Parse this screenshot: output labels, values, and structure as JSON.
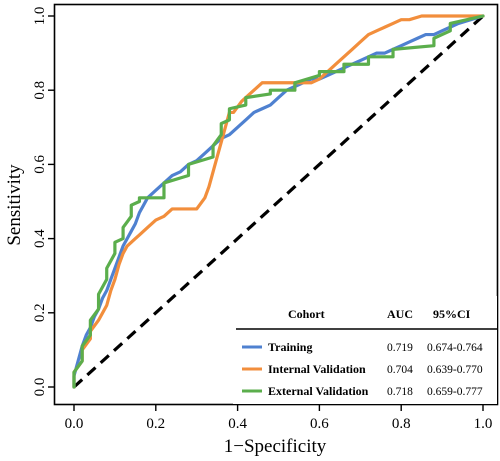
{
  "chart_data": {
    "type": "line",
    "xlabel": "1−Specificity",
    "ylabel": "Sensitivity",
    "xlim": [
      0,
      1
    ],
    "ylim": [
      0,
      1
    ],
    "x_ticks": [
      "0.0",
      "0.2",
      "0.4",
      "0.6",
      "0.8",
      "1.0"
    ],
    "y_ticks": [
      "0.0",
      "0.2",
      "0.4",
      "0.6",
      "0.8",
      "1.0"
    ],
    "grid": false,
    "legend": {
      "placement": "bottom-right",
      "headers": {
        "cohort": "Cohort",
        "auc": "AUC",
        "ci": "95%CI"
      }
    },
    "reference_line": {
      "x": [
        0,
        1
      ],
      "y": [
        0,
        1
      ],
      "style": "dashed",
      "color": "#000000"
    },
    "series": [
      {
        "name": "Training",
        "auc": "0.719",
        "ci": "0.674-0.764",
        "color": "#4F81D0",
        "x": [
          0,
          0,
          0.01,
          0.02,
          0.03,
          0.04,
          0.05,
          0.06,
          0.07,
          0.08,
          0.09,
          0.1,
          0.11,
          0.12,
          0.13,
          0.14,
          0.15,
          0.16,
          0.17,
          0.18,
          0.19,
          0.2,
          0.22,
          0.24,
          0.26,
          0.28,
          0.3,
          0.32,
          0.34,
          0.36,
          0.38,
          0.4,
          0.42,
          0.44,
          0.46,
          0.48,
          0.5,
          0.52,
          0.54,
          0.56,
          0.58,
          0.6,
          0.62,
          0.64,
          0.66,
          0.68,
          0.7,
          0.72,
          0.74,
          0.76,
          0.78,
          0.8,
          0.82,
          0.84,
          0.86,
          0.88,
          0.9,
          0.92,
          0.94,
          1.0
        ],
        "y": [
          0,
          0.03,
          0.07,
          0.11,
          0.14,
          0.16,
          0.19,
          0.21,
          0.24,
          0.26,
          0.29,
          0.32,
          0.35,
          0.38,
          0.4,
          0.42,
          0.44,
          0.47,
          0.49,
          0.51,
          0.52,
          0.53,
          0.55,
          0.57,
          0.58,
          0.6,
          0.61,
          0.63,
          0.65,
          0.67,
          0.68,
          0.7,
          0.72,
          0.74,
          0.75,
          0.76,
          0.78,
          0.8,
          0.81,
          0.82,
          0.83,
          0.83,
          0.84,
          0.85,
          0.86,
          0.87,
          0.88,
          0.89,
          0.9,
          0.9,
          0.91,
          0.92,
          0.93,
          0.94,
          0.95,
          0.95,
          0.96,
          0.97,
          0.98,
          1.0
        ]
      },
      {
        "name": "Internal Validation",
        "auc": "0.704",
        "ci": "0.639-0.770",
        "color": "#F28E3C",
        "x": [
          0,
          0,
          0.02,
          0.02,
          0.04,
          0.04,
          0.06,
          0.07,
          0.08,
          0.09,
          0.1,
          0.11,
          0.12,
          0.13,
          0.14,
          0.15,
          0.16,
          0.17,
          0.18,
          0.2,
          0.22,
          0.24,
          0.26,
          0.28,
          0.3,
          0.32,
          0.33,
          0.34,
          0.35,
          0.36,
          0.37,
          0.38,
          0.39,
          0.41,
          0.42,
          0.44,
          0.46,
          0.48,
          0.5,
          0.52,
          0.54,
          0.56,
          0.58,
          0.6,
          0.62,
          0.64,
          0.66,
          0.68,
          0.7,
          0.72,
          0.74,
          0.76,
          0.78,
          0.8,
          0.82,
          0.85,
          0.9,
          1.0
        ],
        "y": [
          0,
          0.04,
          0.07,
          0.1,
          0.13,
          0.15,
          0.18,
          0.2,
          0.22,
          0.26,
          0.29,
          0.33,
          0.36,
          0.38,
          0.39,
          0.4,
          0.41,
          0.42,
          0.43,
          0.45,
          0.46,
          0.48,
          0.48,
          0.48,
          0.48,
          0.51,
          0.54,
          0.58,
          0.62,
          0.66,
          0.7,
          0.74,
          0.74,
          0.77,
          0.78,
          0.8,
          0.82,
          0.82,
          0.82,
          0.82,
          0.82,
          0.82,
          0.82,
          0.83,
          0.85,
          0.87,
          0.89,
          0.91,
          0.93,
          0.95,
          0.96,
          0.97,
          0.98,
          0.99,
          0.99,
          1.0,
          1.0,
          1.0
        ]
      },
      {
        "name": "External Validation",
        "auc": "0.718",
        "ci": "0.659-0.777",
        "color": "#5BAE4C",
        "x": [
          0,
          0,
          0.02,
          0.02,
          0.04,
          0.04,
          0.06,
          0.06,
          0.08,
          0.08,
          0.1,
          0.1,
          0.12,
          0.12,
          0.14,
          0.14,
          0.16,
          0.16,
          0.22,
          0.22,
          0.28,
          0.28,
          0.34,
          0.34,
          0.36,
          0.36,
          0.38,
          0.38,
          0.42,
          0.42,
          0.48,
          0.48,
          0.54,
          0.54,
          0.6,
          0.6,
          0.66,
          0.66,
          0.72,
          0.72,
          0.78,
          0.78,
          0.88,
          0.88,
          0.92,
          0.92,
          1.0
        ],
        "y": [
          0,
          0.04,
          0.07,
          0.11,
          0.14,
          0.18,
          0.21,
          0.25,
          0.29,
          0.32,
          0.36,
          0.39,
          0.4,
          0.43,
          0.46,
          0.49,
          0.5,
          0.51,
          0.51,
          0.55,
          0.57,
          0.6,
          0.62,
          0.65,
          0.68,
          0.71,
          0.72,
          0.75,
          0.76,
          0.78,
          0.79,
          0.8,
          0.8,
          0.82,
          0.84,
          0.85,
          0.85,
          0.87,
          0.87,
          0.89,
          0.89,
          0.91,
          0.92,
          0.94,
          0.96,
          0.98,
          1.0
        ]
      }
    ]
  }
}
